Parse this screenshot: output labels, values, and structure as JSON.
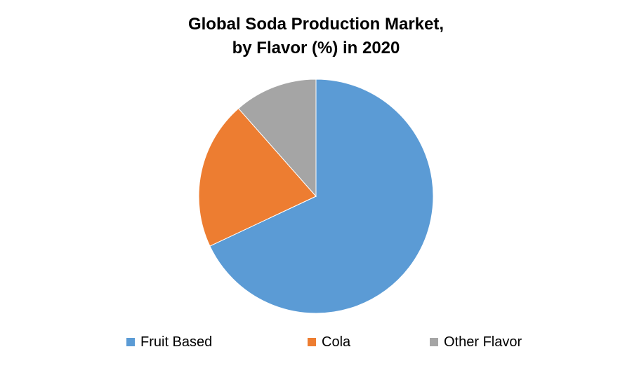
{
  "chart_data": {
    "type": "pie",
    "title_lines": [
      "Global Soda Production Market,",
      "by Flavor (%) in 2020"
    ],
    "categories": [
      "Fruit Based",
      "Cola",
      "Other Flavor"
    ],
    "values": [
      68,
      20.5,
      11.5
    ],
    "colors": [
      "#5B9BD5",
      "#ED7D31",
      "#A5A5A5"
    ],
    "start_angle_deg": 0,
    "direction": "clockwise",
    "legend_position": "bottom"
  }
}
